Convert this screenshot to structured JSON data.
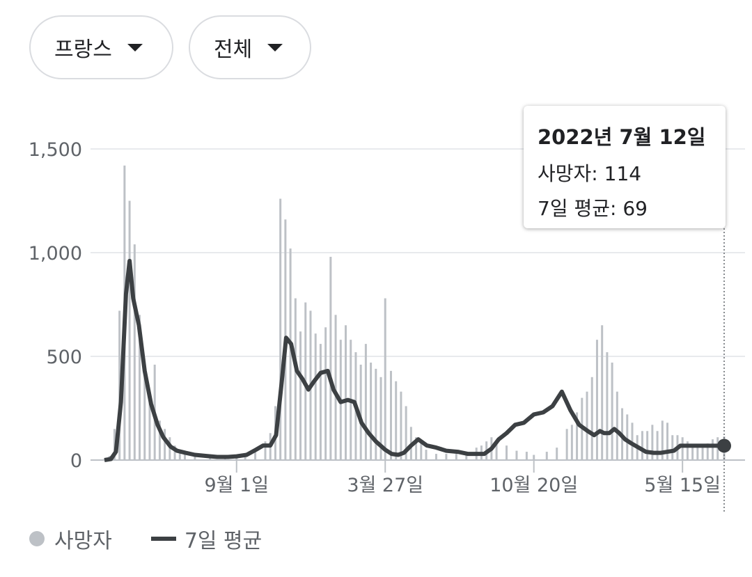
{
  "filters": {
    "country": "프랑스",
    "scope": "전체"
  },
  "tooltip": {
    "date": "2022년 7월 12일",
    "deaths_label": "사망자",
    "deaths_value": "114",
    "avg_label": "7일 평균",
    "avg_value": "69"
  },
  "legend": {
    "deaths": "사망자",
    "avg": "7일 평균"
  },
  "colors": {
    "bars": "#bdc1c6",
    "line": "#3c4043",
    "grid": "#e8eaed"
  },
  "chart_data": {
    "type": "bar",
    "title": "",
    "xlabel": "",
    "ylabel": "",
    "ylim": [
      0,
      1500
    ],
    "y_ticks": [
      0,
      500,
      1000,
      1500
    ],
    "y_tick_labels": [
      "0",
      "500",
      "1,000",
      "1,500"
    ],
    "x_ticks": [
      "9월 1일",
      "3월 27일",
      "10월 20일",
      "5월 15일"
    ],
    "x_range": [
      "2020-03-01",
      "2022-07-12"
    ],
    "series": [
      {
        "name": "사망자",
        "type": "bar",
        "dates": [
          "2020-03-01",
          "2020-03-08",
          "2020-03-15",
          "2020-03-22",
          "2020-03-29",
          "2020-04-05",
          "2020-04-12",
          "2020-04-19",
          "2020-04-26",
          "2020-05-03",
          "2020-05-10",
          "2020-05-17",
          "2020-05-24",
          "2020-05-31",
          "2020-06-07",
          "2020-06-14",
          "2020-06-21",
          "2020-07-05",
          "2020-07-26",
          "2020-08-16",
          "2020-09-01",
          "2020-09-13",
          "2020-09-27",
          "2020-10-11",
          "2020-10-18",
          "2020-10-25",
          "2020-11-01",
          "2020-11-08",
          "2020-11-15",
          "2020-11-22",
          "2020-11-29",
          "2020-12-06",
          "2020-12-13",
          "2020-12-20",
          "2020-12-27",
          "2021-01-03",
          "2021-01-10",
          "2021-01-17",
          "2021-01-24",
          "2021-01-31",
          "2021-02-07",
          "2021-02-14",
          "2021-02-21",
          "2021-02-28",
          "2021-03-07",
          "2021-03-14",
          "2021-03-21",
          "2021-03-27",
          "2021-04-04",
          "2021-04-11",
          "2021-04-18",
          "2021-04-25",
          "2021-05-02",
          "2021-05-09",
          "2021-05-16",
          "2021-05-23",
          "2021-06-06",
          "2021-06-20",
          "2021-07-04",
          "2021-07-18",
          "2021-08-01",
          "2021-08-08",
          "2021-08-15",
          "2021-08-22",
          "2021-08-29",
          "2021-09-12",
          "2021-09-26",
          "2021-10-10",
          "2021-10-20",
          "2021-11-07",
          "2021-11-21",
          "2021-12-05",
          "2021-12-12",
          "2021-12-19",
          "2021-12-26",
          "2022-01-02",
          "2022-01-09",
          "2022-01-16",
          "2022-01-23",
          "2022-01-30",
          "2022-02-06",
          "2022-02-13",
          "2022-02-20",
          "2022-02-27",
          "2022-03-06",
          "2022-03-13",
          "2022-03-20",
          "2022-03-27",
          "2022-04-03",
          "2022-04-10",
          "2022-04-17",
          "2022-04-24",
          "2022-05-01",
          "2022-05-08",
          "2022-05-15",
          "2022-05-22",
          "2022-05-29",
          "2022-06-05",
          "2022-06-12",
          "2022-06-19",
          "2022-06-26",
          "2022-07-03",
          "2022-07-12"
        ],
        "values": [
          5,
          20,
          150,
          720,
          1420,
          1250,
          1040,
          700,
          420,
          330,
          460,
          190,
          150,
          110,
          70,
          45,
          30,
          25,
          20,
          15,
          18,
          25,
          40,
          90,
          130,
          260,
          1260,
          1160,
          1020,
          780,
          620,
          760,
          720,
          610,
          560,
          640,
          980,
          700,
          580,
          650,
          580,
          520,
          460,
          560,
          470,
          440,
          400,
          780,
          430,
          380,
          330,
          260,
          160,
          110,
          80,
          50,
          30,
          30,
          30,
          25,
          60,
          70,
          90,
          110,
          75,
          70,
          45,
          40,
          25,
          40,
          60,
          150,
          170,
          230,
          300,
          330,
          400,
          580,
          650,
          520,
          470,
          330,
          250,
          220,
          180,
          120,
          140,
          140,
          170,
          140,
          190,
          180,
          120,
          120,
          110,
          90,
          70,
          60,
          60,
          80,
          100,
          110,
          114
        ]
      },
      {
        "name": "7일 평균",
        "type": "line",
        "dates": [
          "2020-03-01",
          "2020-03-10",
          "2020-03-17",
          "2020-03-24",
          "2020-03-31",
          "2020-04-05",
          "2020-04-10",
          "2020-04-18",
          "2020-04-26",
          "2020-05-05",
          "2020-05-14",
          "2020-05-22",
          "2020-06-01",
          "2020-06-10",
          "2020-06-22",
          "2020-07-05",
          "2020-07-20",
          "2020-08-05",
          "2020-08-20",
          "2020-09-01",
          "2020-09-15",
          "2020-09-28",
          "2020-10-08",
          "2020-10-18",
          "2020-10-26",
          "2020-11-03",
          "2020-11-09",
          "2020-11-16",
          "2020-11-24",
          "2020-12-02",
          "2020-12-10",
          "2020-12-18",
          "2020-12-27",
          "2021-01-06",
          "2021-01-14",
          "2021-01-24",
          "2021-02-03",
          "2021-02-12",
          "2021-02-22",
          "2021-03-04",
          "2021-03-14",
          "2021-03-27",
          "2021-04-05",
          "2021-04-14",
          "2021-04-22",
          "2021-05-02",
          "2021-05-12",
          "2021-05-24",
          "2021-06-06",
          "2021-06-20",
          "2021-07-06",
          "2021-07-20",
          "2021-08-02",
          "2021-08-12",
          "2021-08-22",
          "2021-09-01",
          "2021-09-12",
          "2021-09-24",
          "2021-10-06",
          "2021-10-20",
          "2021-11-02",
          "2021-11-15",
          "2021-11-28",
          "2021-12-10",
          "2021-12-22",
          "2022-01-03",
          "2022-01-12",
          "2022-01-20",
          "2022-01-26",
          "2022-02-02",
          "2022-02-09",
          "2022-02-16",
          "2022-02-24",
          "2022-03-05",
          "2022-03-15",
          "2022-03-25",
          "2022-04-05",
          "2022-04-15",
          "2022-04-24",
          "2022-05-03",
          "2022-05-12",
          "2022-05-21",
          "2022-05-30",
          "2022-06-08",
          "2022-06-17",
          "2022-06-26",
          "2022-07-05",
          "2022-07-12"
        ],
        "values": [
          0,
          5,
          40,
          280,
          800,
          960,
          780,
          650,
          430,
          270,
          170,
          110,
          65,
          45,
          35,
          25,
          20,
          15,
          15,
          18,
          25,
          50,
          70,
          70,
          120,
          380,
          590,
          560,
          430,
          390,
          340,
          380,
          420,
          430,
          340,
          280,
          290,
          280,
          180,
          130,
          90,
          50,
          30,
          25,
          35,
          70,
          100,
          70,
          60,
          45,
          40,
          30,
          30,
          30,
          55,
          100,
          130,
          170,
          180,
          220,
          230,
          260,
          330,
          240,
          170,
          140,
          120,
          140,
          130,
          130,
          150,
          130,
          100,
          80,
          60,
          40,
          35,
          35,
          40,
          45,
          69,
          69,
          69,
          69,
          69,
          69,
          69,
          69
        ]
      }
    ]
  }
}
